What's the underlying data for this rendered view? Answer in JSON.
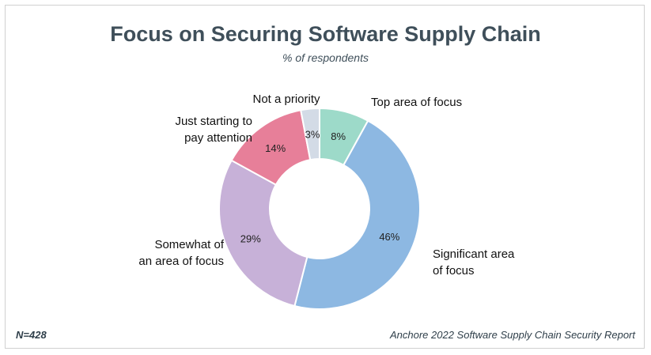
{
  "chart_data": {
    "type": "pie",
    "variant": "donut",
    "title": "Focus on Securing Software Supply Chain",
    "subtitle": "% of respondents",
    "slices": [
      {
        "label": [
          "Top area of focus"
        ],
        "value": 8,
        "display": "8%",
        "color": "#9ddac9"
      },
      {
        "label": [
          "Significant area",
          "of focus"
        ],
        "value": 46,
        "display": "46%",
        "color": "#8db8e2"
      },
      {
        "label": [
          "Somewhat of",
          "an area of focus"
        ],
        "value": 29,
        "display": "29%",
        "color": "#c7b1d8"
      },
      {
        "label": [
          "Just starting to",
          "pay attention"
        ],
        "value": 14,
        "display": "14%",
        "color": "#e77f99"
      },
      {
        "label": [
          "Not a priority"
        ],
        "value": 3,
        "display": "3%",
        "color": "#d3dbe6"
      }
    ]
  },
  "footer": {
    "sample": "N=428",
    "source": "Anchore 2022 Software Supply Chain Security Report"
  }
}
